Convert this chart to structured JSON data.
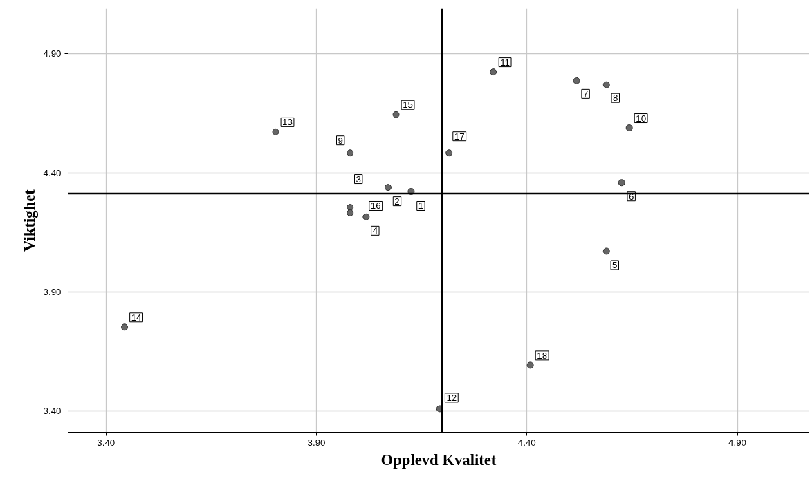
{
  "chart_data": {
    "type": "scatter",
    "xlabel": "Opplevd Kvalitet",
    "ylabel": "Viktighet",
    "x": [
      4.125,
      4.07,
      3.98,
      4.018,
      4.589,
      4.625,
      4.518,
      4.589,
      3.98,
      4.643,
      4.32,
      4.193,
      3.803,
      3.444,
      4.089,
      3.98,
      4.215,
      4.408
    ],
    "series": [
      {
        "color": "#666666",
        "values": [
          4.322,
          4.339,
          4.255,
          4.215,
          4.071,
          4.359,
          4.787,
          4.77,
          4.484,
          4.589,
          4.824,
          3.409,
          4.572,
          3.752,
          4.645,
          4.232,
          4.484,
          3.592
        ]
      }
    ],
    "value_labels": [
      "1",
      "2",
      "3",
      "4",
      "5",
      "6",
      "7",
      "8",
      "9",
      "10",
      "11",
      "12",
      "13",
      "14",
      "15",
      "16",
      "17",
      "18"
    ],
    "xlim": [
      3.31,
      5.07
    ],
    "ylim": [
      3.31,
      5.09
    ],
    "xticks": [
      {
        "value": 3.4,
        "label": "3.40"
      },
      {
        "value": 3.9,
        "label": "3.90"
      },
      {
        "value": 4.4,
        "label": "4.40"
      },
      {
        "value": 4.9,
        "label": "4.90"
      }
    ],
    "yticks": [
      {
        "value": 3.4,
        "label": "3.40"
      },
      {
        "value": 3.9,
        "label": "3.90"
      },
      {
        "value": 4.4,
        "label": "4.40"
      },
      {
        "value": 4.9,
        "label": "4.90"
      }
    ],
    "ref_lines": [
      {
        "axis": "x",
        "value": 4.198,
        "label": null,
        "color": "#000000"
      },
      {
        "axis": "y",
        "value": 4.313,
        "label": null,
        "color": "#000000"
      }
    ],
    "grid": true,
    "marker": "circle"
  }
}
